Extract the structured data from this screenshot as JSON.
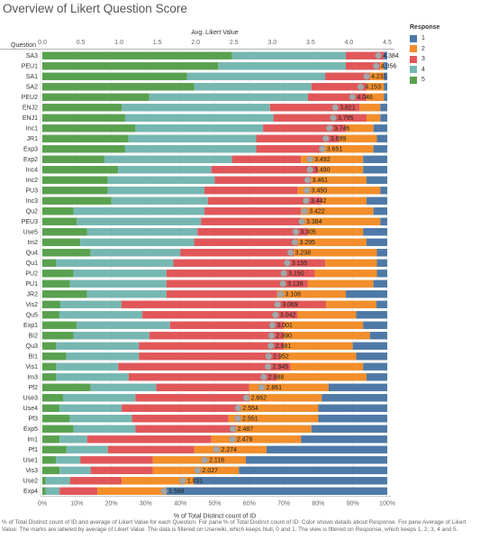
{
  "title": "Overview of Likert Question Score",
  "top_axis_label": "Avg. Likert Value",
  "bottom_axis_label": "% of Total Distinct count of ID",
  "row_header": "Question",
  "legend": {
    "title": "Response",
    "items": [
      {
        "label": "1",
        "color": "#4e79a7"
      },
      {
        "label": "2",
        "color": "#f28e2b"
      },
      {
        "label": "3",
        "color": "#e15759"
      },
      {
        "label": "4",
        "color": "#76b7b2"
      },
      {
        "label": "5",
        "color": "#59a14f"
      }
    ]
  },
  "footnote": "% of Total Distinct count of ID and average of Likert Value for each Question. For pane % of Total Distinct count of ID: Color shows details about Response. For pane Average of Likert Value: The marks are labeled by average of Likert Value. The data is filtered on Userwiki, which keeps Null, 0 and 1. The view is filtered on Response, which keeps 1, 2, 3, 4 and 5.",
  "chart_data": {
    "type": "bar",
    "orientation": "horizontal",
    "stacked": true,
    "x_bottom": {
      "label": "% of Total Distinct count of ID",
      "lim": [
        0,
        100
      ],
      "ticks": [
        "0%",
        "10%",
        "20%",
        "30%",
        "40%",
        "50%",
        "60%",
        "70%",
        "80%",
        "90%",
        "100%"
      ]
    },
    "x_top": {
      "label": "Avg. Likert Value",
      "lim": [
        0,
        4.5
      ],
      "ticks": [
        "0.0",
        "0.5",
        "1.0",
        "1.5",
        "2.0",
        "2.5",
        "3.0",
        "3.5",
        "4.0",
        "4.5"
      ]
    },
    "grid": true,
    "legend_position": "right",
    "series_order": [
      "5",
      "4",
      "3",
      "2",
      "1"
    ],
    "questions": [
      {
        "q": "SA3",
        "pct": {
          "5": 55,
          "4": 33,
          "3": 11,
          "2": 0,
          "1": 1
        },
        "avg": 4.384
      },
      {
        "q": "PEU1",
        "pct": {
          "5": 51,
          "4": 37,
          "3": 10,
          "2": 1,
          "1": 1
        },
        "avg": 4.356
      },
      {
        "q": "SA1",
        "pct": {
          "5": 42,
          "4": 40,
          "3": 13,
          "2": 4,
          "1": 1
        },
        "avg": 4.231
      },
      {
        "q": "SA2",
        "pct": {
          "5": 44,
          "4": 34,
          "3": 16,
          "2": 5,
          "1": 1
        },
        "avg": 4.153
      },
      {
        "q": "PEU2",
        "pct": {
          "5": 31,
          "4": 46,
          "3": 17,
          "2": 5,
          "1": 1
        },
        "avg": 4.046
      },
      {
        "q": "ENJ2",
        "pct": {
          "5": 23,
          "4": 43,
          "3": 26,
          "2": 6,
          "1": 2
        },
        "avg": 3.821
      },
      {
        "q": "ENJ1",
        "pct": {
          "5": 24,
          "4": 43,
          "3": 27,
          "2": 4,
          "1": 2
        },
        "avg": 3.795
      },
      {
        "q": "Inc1",
        "pct": {
          "5": 27,
          "4": 37,
          "3": 24,
          "2": 8,
          "1": 4
        },
        "avg": 3.746
      },
      {
        "q": "JR1",
        "pct": {
          "5": 25,
          "4": 37,
          "3": 24,
          "2": 11,
          "1": 3
        },
        "avg": 3.699
      },
      {
        "q": "Exp3",
        "pct": {
          "5": 24,
          "4": 38,
          "3": 19,
          "2": 15,
          "1": 4
        },
        "avg": 3.651
      },
      {
        "q": "Exp2",
        "pct": {
          "5": 18,
          "4": 37,
          "3": 20,
          "2": 18,
          "1": 7
        },
        "avg": 3.492
      },
      {
        "q": "Inc4",
        "pct": {
          "5": 22,
          "4": 27,
          "3": 31,
          "2": 13,
          "1": 7
        },
        "avg": 3.49
      },
      {
        "q": "Inc2",
        "pct": {
          "5": 19,
          "4": 31,
          "3": 28,
          "2": 16,
          "1": 6
        },
        "avg": 3.461
      },
      {
        "q": "PU3",
        "pct": {
          "5": 19,
          "4": 28,
          "3": 27,
          "2": 24,
          "1": 2
        },
        "avg": 3.45
      },
      {
        "q": "Inc3",
        "pct": {
          "5": 20,
          "4": 28,
          "3": 33,
          "2": 13,
          "1": 6
        },
        "avg": 3.442
      },
      {
        "q": "Qu2",
        "pct": {
          "5": 9,
          "4": 38,
          "3": 28,
          "2": 21,
          "1": 4
        },
        "avg": 3.422
      },
      {
        "q": "PEU3",
        "pct": {
          "5": 10,
          "4": 36,
          "3": 29,
          "2": 23,
          "1": 2
        },
        "avg": 3.384
      },
      {
        "q": "Use5",
        "pct": {
          "5": 13,
          "4": 32,
          "3": 32,
          "2": 16,
          "1": 7
        },
        "avg": 3.305
      },
      {
        "q": "Im2",
        "pct": {
          "5": 11,
          "4": 33,
          "3": 30,
          "2": 20,
          "1": 6
        },
        "avg": 3.295
      },
      {
        "q": "Qu4",
        "pct": {
          "5": 14,
          "4": 26,
          "3": 33,
          "2": 24,
          "1": 3
        },
        "avg": 3.238
      },
      {
        "q": "Qu1",
        "pct": {
          "5": 4,
          "4": 34,
          "3": 44,
          "2": 15,
          "1": 3
        },
        "avg": 3.195
      },
      {
        "q": "PU2",
        "pct": {
          "5": 9,
          "4": 27,
          "3": 43,
          "2": 18,
          "1": 3
        },
        "avg": 3.15
      },
      {
        "q": "PU1",
        "pct": {
          "5": 8,
          "4": 28,
          "3": 41,
          "2": 19,
          "1": 4
        },
        "avg": 3.138
      },
      {
        "q": "JR2",
        "pct": {
          "5": 13,
          "4": 23,
          "3": 32,
          "2": 20,
          "1": 12
        },
        "avg": 3.108
      },
      {
        "q": "Vis2",
        "pct": {
          "5": 5,
          "4": 17,
          "3": 57,
          "2": 14,
          "1": 3
        },
        "avg": 3.069
      },
      {
        "q": "Qu5",
        "pct": {
          "5": 5,
          "4": 24,
          "3": 45,
          "2": 17,
          "1": 9
        },
        "avg": 3.042
      },
      {
        "q": "Exp1",
        "pct": {
          "5": 10,
          "4": 27,
          "3": 33,
          "2": 23,
          "1": 7
        },
        "avg": 3.001
      },
      {
        "q": "BI2",
        "pct": {
          "5": 9,
          "4": 22,
          "3": 39,
          "2": 25,
          "1": 5
        },
        "avg": 2.99
      },
      {
        "q": "Qu3",
        "pct": {
          "5": 4,
          "4": 24,
          "3": 42,
          "2": 20,
          "1": 10
        },
        "avg": 2.981
      },
      {
        "q": "BI1",
        "pct": {
          "5": 7,
          "4": 21,
          "3": 41,
          "2": 22,
          "1": 9
        },
        "avg": 2.952
      },
      {
        "q": "Vis1",
        "pct": {
          "5": 4,
          "4": 18,
          "3": 50,
          "2": 21,
          "1": 7
        },
        "avg": 2.945
      },
      {
        "q": "Im3",
        "pct": {
          "5": 4,
          "4": 21,
          "3": 43,
          "2": 26,
          "1": 6
        },
        "avg": 2.888
      },
      {
        "q": "Pf2",
        "pct": {
          "5": 14,
          "4": 19,
          "3": 27,
          "2": 23,
          "1": 17
        },
        "avg": 2.861
      },
      {
        "q": "Use3",
        "pct": {
          "5": 6,
          "4": 21,
          "3": 33,
          "2": 21,
          "1": 19
        },
        "avg": 2.662
      },
      {
        "q": "Use4",
        "pct": {
          "5": 5,
          "4": 18,
          "3": 34,
          "2": 23,
          "1": 20
        },
        "avg": 2.554
      },
      {
        "q": "Pf3",
        "pct": {
          "5": 8,
          "4": 18,
          "3": 28,
          "2": 26,
          "1": 20
        },
        "avg": 2.551
      },
      {
        "q": "Exp5",
        "pct": {
          "5": 9,
          "4": 18,
          "3": 29,
          "2": 22,
          "1": 22
        },
        "avg": 2.487
      },
      {
        "q": "Im1",
        "pct": {
          "5": 5,
          "4": 8,
          "3": 36,
          "2": 26,
          "1": 25
        },
        "avg": 2.478
      },
      {
        "q": "Pf1",
        "pct": {
          "5": 7,
          "4": 12,
          "3": 25,
          "2": 21,
          "1": 35
        },
        "avg": 2.274
      },
      {
        "q": "Use1",
        "pct": {
          "5": 4,
          "4": 7,
          "3": 21,
          "2": 27,
          "1": 41
        },
        "avg": 2.116
      },
      {
        "q": "Vis3",
        "pct": {
          "5": 5,
          "4": 9,
          "3": 18,
          "2": 25,
          "1": 43
        },
        "avg": 2.027
      },
      {
        "q": "Use2",
        "pct": {
          "5": 1,
          "4": 7,
          "3": 15,
          "2": 21,
          "1": 56
        },
        "avg": 1.831
      },
      {
        "q": "Exp4",
        "pct": {
          "5": 1,
          "4": 4,
          "3": 11,
          "2": 20,
          "1": 64
        },
        "avg": 1.588
      }
    ]
  }
}
